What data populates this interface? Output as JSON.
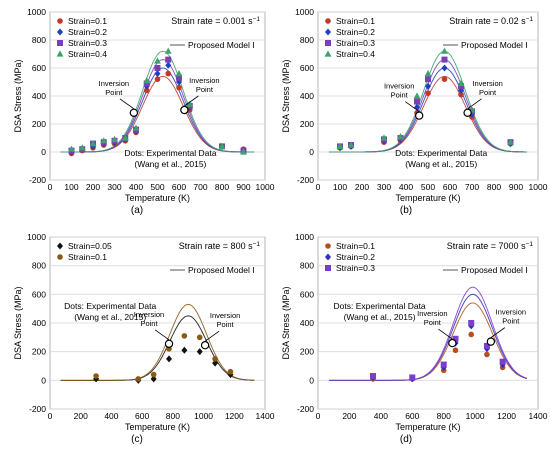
{
  "figure": {
    "panels": [
      "(a)",
      "(b)",
      "(c)",
      "(d)"
    ]
  },
  "chart_data": [
    {
      "type": "scatter",
      "panel_label": "(a)",
      "strain_rate_text": "Strain rate = 0.001 s",
      "strain_rate_sup": "−1",
      "xlabel": "Temperature (K)",
      "ylabel": "DSA Stress (MPa)",
      "xlim": [
        0,
        1000
      ],
      "ylim": [
        -200,
        1000
      ],
      "xticks": [
        0,
        100,
        200,
        300,
        400,
        500,
        600,
        700,
        800,
        900,
        1000
      ],
      "yticks": [
        -200,
        0,
        200,
        400,
        600,
        800,
        1000
      ],
      "model_label": "Proposed Model I",
      "inversion_label": [
        "Inversion",
        "Point"
      ],
      "dots_label": [
        "Dots: Experimental Data",
        "(Wang et al., 2015)"
      ],
      "model_center": 525,
      "model_sigma": 95,
      "inversion_points": [
        {
          "x": 390,
          "y": 280
        },
        {
          "x": 625,
          "y": 300
        }
      ],
      "series": [
        {
          "name": "Strain=0.1",
          "color": "#c0392b",
          "marker": "circle",
          "peak": 540,
          "x": [
            100,
            150,
            200,
            250,
            300,
            350,
            400,
            450,
            500,
            550,
            600,
            650,
            800,
            900
          ],
          "y": [
            -10,
            10,
            30,
            50,
            60,
            80,
            140,
            440,
            520,
            560,
            460,
            300,
            40,
            20
          ]
        },
        {
          "name": "Strain=0.2",
          "color": "#1f3fbf",
          "marker": "diamond",
          "peak": 600,
          "x": [
            100,
            150,
            200,
            250,
            300,
            350,
            400,
            450,
            500,
            550,
            600,
            650,
            800,
            900
          ],
          "y": [
            0,
            20,
            40,
            60,
            70,
            90,
            150,
            470,
            560,
            620,
            500,
            320,
            40,
            10
          ]
        },
        {
          "name": "Strain=0.3",
          "color": "#7b3fb5",
          "marker": "square",
          "peak": 660,
          "x": [
            100,
            150,
            200,
            250,
            300,
            350,
            400,
            450,
            500,
            550,
            600,
            650,
            800,
            900
          ],
          "y": [
            10,
            20,
            60,
            70,
            80,
            100,
            160,
            490,
            600,
            660,
            530,
            330,
            40,
            10
          ]
        },
        {
          "name": "Strain=0.4",
          "color": "#3aa36a",
          "marker": "triangle",
          "peak": 720,
          "x": [
            100,
            150,
            200,
            250,
            300,
            350,
            400,
            450,
            500,
            550,
            600,
            650,
            800,
            900
          ],
          "y": [
            20,
            30,
            60,
            80,
            90,
            100,
            170,
            510,
            650,
            720,
            560,
            340,
            40,
            0
          ]
        }
      ]
    },
    {
      "type": "scatter",
      "panel_label": "(b)",
      "strain_rate_text": "Strain rate = 0.02 s",
      "strain_rate_sup": "−1",
      "xlabel": "Temperature (K)",
      "ylabel": "DSA Stress (MPa)",
      "xlim": [
        0,
        1000
      ],
      "ylim": [
        -200,
        1000
      ],
      "xticks": [
        0,
        100,
        200,
        300,
        400,
        500,
        600,
        700,
        800,
        900,
        1000
      ],
      "yticks": [
        -200,
        0,
        200,
        400,
        600,
        800,
        1000
      ],
      "model_label": "Proposed Model I",
      "inversion_label": [
        "Inversion",
        "Point"
      ],
      "dots_label": [
        "Dots: Experimental Data",
        "(Wang et al., 2015)"
      ],
      "model_center": 575,
      "model_sigma": 95,
      "inversion_points": [
        {
          "x": 460,
          "y": 260
        },
        {
          "x": 680,
          "y": 280
        }
      ],
      "series": [
        {
          "name": "Strain=0.1",
          "color": "#c0392b",
          "marker": "circle",
          "peak": 540,
          "x": [
            100,
            150,
            300,
            375,
            450,
            500,
            575,
            650,
            700,
            875
          ],
          "y": [
            30,
            40,
            70,
            80,
            280,
            420,
            520,
            410,
            250,
            60
          ]
        },
        {
          "name": "Strain=0.2",
          "color": "#1f3fbf",
          "marker": "diamond",
          "peak": 600,
          "x": [
            100,
            150,
            300,
            375,
            450,
            500,
            575,
            650,
            700,
            875
          ],
          "y": [
            30,
            40,
            80,
            90,
            320,
            470,
            600,
            440,
            270,
            60
          ]
        },
        {
          "name": "Strain=0.3",
          "color": "#7b3fb5",
          "marker": "square",
          "peak": 660,
          "x": [
            100,
            150,
            300,
            375,
            450,
            500,
            575,
            650,
            700,
            875
          ],
          "y": [
            40,
            50,
            90,
            100,
            360,
            520,
            660,
            470,
            290,
            70
          ]
        },
        {
          "name": "Strain=0.4",
          "color": "#3aa36a",
          "marker": "triangle",
          "peak": 720,
          "x": [
            100,
            150,
            300,
            375,
            450,
            500,
            575,
            650,
            700,
            875
          ],
          "y": [
            40,
            50,
            100,
            110,
            400,
            560,
            720,
            490,
            300,
            70
          ]
        }
      ]
    },
    {
      "type": "scatter",
      "panel_label": "(c)",
      "strain_rate_text": "Strain rate = 800 s",
      "strain_rate_sup": "−1",
      "xlabel": "Temperature (K)",
      "ylabel": "DSA Stress (MPa)",
      "xlim": [
        0,
        1400
      ],
      "ylim": [
        -200,
        1000
      ],
      "xticks": [
        0,
        200,
        400,
        600,
        800,
        1000,
        1200,
        1400
      ],
      "yticks": [
        -200,
        0,
        200,
        400,
        600,
        800,
        1000
      ],
      "model_label": "Proposed Model I",
      "inversion_label": [
        "Inversion",
        "Point"
      ],
      "dots_label": [
        "Dots: Experimental Data",
        "(Wang et al., 2015)"
      ],
      "model_center": 900,
      "model_sigma": 120,
      "inversion_points": [
        {
          "x": 775,
          "y": 255
        },
        {
          "x": 1010,
          "y": 245
        }
      ],
      "series": [
        {
          "name": "Strain=0.05",
          "color": "#111111",
          "marker": "diamond",
          "peak": 450,
          "x": [
            300,
            575,
            675,
            775,
            875,
            975,
            1075,
            1175
          ],
          "y": [
            10,
            0,
            10,
            150,
            210,
            200,
            120,
            40
          ]
        },
        {
          "name": "Strain=0.1",
          "color": "#8a5a12",
          "marker": "circle",
          "peak": 530,
          "x": [
            300,
            575,
            675,
            775,
            875,
            975,
            1075,
            1175
          ],
          "y": [
            30,
            10,
            40,
            220,
            310,
            300,
            150,
            60
          ]
        }
      ]
    },
    {
      "type": "scatter",
      "panel_label": "(d)",
      "strain_rate_text": "Strain rate = 7000 s",
      "strain_rate_sup": "−1",
      "xlabel": "Temperature (K)",
      "ylabel": "DSA Stress (MPa)",
      "xlim": [
        0,
        1400
      ],
      "ylim": [
        -200,
        1000
      ],
      "xticks": [
        0,
        200,
        400,
        600,
        800,
        1000,
        1200,
        1400
      ],
      "yticks": [
        -200,
        0,
        200,
        400,
        600,
        800,
        1000
      ],
      "model_label": "Proposed Model I",
      "inversion_label": [
        "Inversion",
        "Point"
      ],
      "dots_label": [
        "Dots: Experimental Data",
        "(Wang et al., 2015)"
      ],
      "model_center": 985,
      "model_sigma": 125,
      "inversion_points": [
        {
          "x": 855,
          "y": 260
        },
        {
          "x": 1100,
          "y": 270
        }
      ],
      "series": [
        {
          "name": "Strain=0.1",
          "color": "#b5501c",
          "marker": "circle",
          "peak": 540,
          "x": [
            350,
            600,
            800,
            875,
            975,
            1075,
            1175
          ],
          "y": [
            10,
            10,
            70,
            210,
            320,
            180,
            90
          ]
        },
        {
          "name": "Strain=0.2",
          "color": "#2f2fb5",
          "marker": "diamond",
          "peak": 600,
          "x": [
            350,
            600,
            800,
            875,
            975,
            1075,
            1175
          ],
          "y": [
            20,
            10,
            90,
            260,
            380,
            220,
            110
          ]
        },
        {
          "name": "Strain=0.3",
          "color": "#7b3fd0",
          "marker": "square",
          "peak": 650,
          "x": [
            350,
            600,
            800,
            875,
            975,
            1075,
            1175
          ],
          "y": [
            30,
            20,
            110,
            290,
            400,
            240,
            130
          ]
        }
      ]
    }
  ]
}
